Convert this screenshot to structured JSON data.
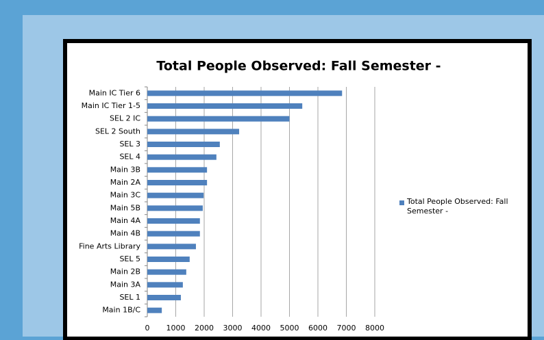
{
  "chart_data": {
    "type": "bar",
    "orientation": "horizontal",
    "title": "Total People Observed: Fall Semester -",
    "categories": [
      "Main IC Tier 6",
      "Main IC Tier 1-5",
      "SEL 2 IC",
      "SEL 2 South",
      "SEL 3",
      "SEL 4",
      "Main 3B",
      "Main 2A",
      "Main 3C",
      "Main 5B",
      "Main 4A",
      "Main 4B",
      "Fine Arts Library",
      "SEL 5",
      "Main 2B",
      "Main 3A",
      "SEL 1",
      "Main 1B/C"
    ],
    "series": [
      {
        "name": "Total People Observed: Fall Semester -",
        "color": "#4f81bd",
        "values": [
          6850,
          5450,
          5000,
          3230,
          2550,
          2430,
          2100,
          2100,
          1980,
          1950,
          1850,
          1850,
          1710,
          1490,
          1370,
          1250,
          1180,
          510
        ]
      }
    ],
    "xlim": [
      0,
      8000
    ],
    "xticks": [
      0,
      1000,
      2000,
      3000,
      4000,
      5000,
      6000,
      7000,
      8000
    ],
    "grid": true,
    "legend": "right"
  }
}
